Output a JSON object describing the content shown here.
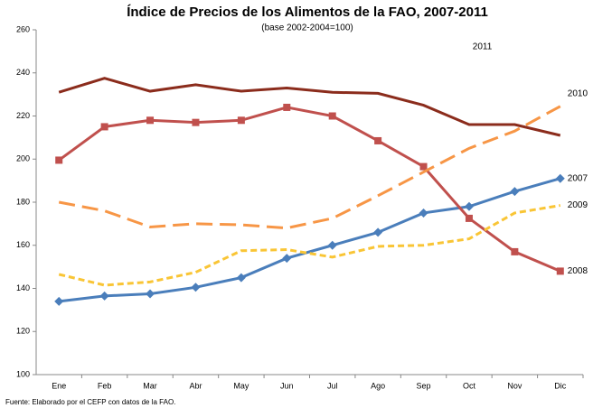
{
  "chart_data": {
    "type": "line",
    "title": "Índice de Precios de los Alimentos de la FAO, 2007-2011",
    "subtitle": "(base 2002-2004=100)",
    "note": "Fuente: Elaborado por el CEFP con datos de la FAO.",
    "categories": [
      "Ene",
      "Feb",
      "Mar",
      "Abr",
      "May",
      "Jun",
      "Jul",
      "Ago",
      "Sep",
      "Oct",
      "Nov",
      "Dic"
    ],
    "ylim": [
      100,
      260
    ],
    "yticks": [
      100,
      120,
      140,
      160,
      180,
      200,
      220,
      240,
      260
    ],
    "grid": false,
    "series": [
      {
        "name": "2007",
        "color": "#4a7ebb",
        "dash": "solid",
        "marker": "diamond",
        "values": [
          134,
          136.5,
          137.5,
          140.5,
          145,
          154,
          160,
          166,
          175,
          178,
          185,
          191
        ]
      },
      {
        "name": "2008",
        "color": "#c0504d",
        "dash": "solid",
        "marker": "square",
        "values": [
          199.5,
          215,
          218,
          217,
          218,
          224,
          220,
          208.5,
          196.5,
          172.5,
          157,
          148
        ]
      },
      {
        "name": "2009",
        "color": "#f9c535",
        "dash": "short",
        "marker": "none",
        "values": [
          146.5,
          141.5,
          143,
          147.5,
          157.5,
          158,
          154.5,
          159.5,
          160,
          163,
          175,
          178.5
        ]
      },
      {
        "name": "2010",
        "color": "#f79646",
        "dash": "long",
        "marker": "none",
        "values": [
          180,
          176,
          168.5,
          170,
          169.5,
          168,
          172.5,
          183,
          194,
          205,
          213,
          224.5
        ]
      },
      {
        "name": "2011",
        "color": "#8b2c1c",
        "dash": "solid",
        "marker": "none",
        "values": [
          231,
          237.5,
          231.5,
          234.5,
          231.5,
          233,
          231,
          230.5,
          225,
          216,
          216,
          211
        ]
      }
    ]
  }
}
